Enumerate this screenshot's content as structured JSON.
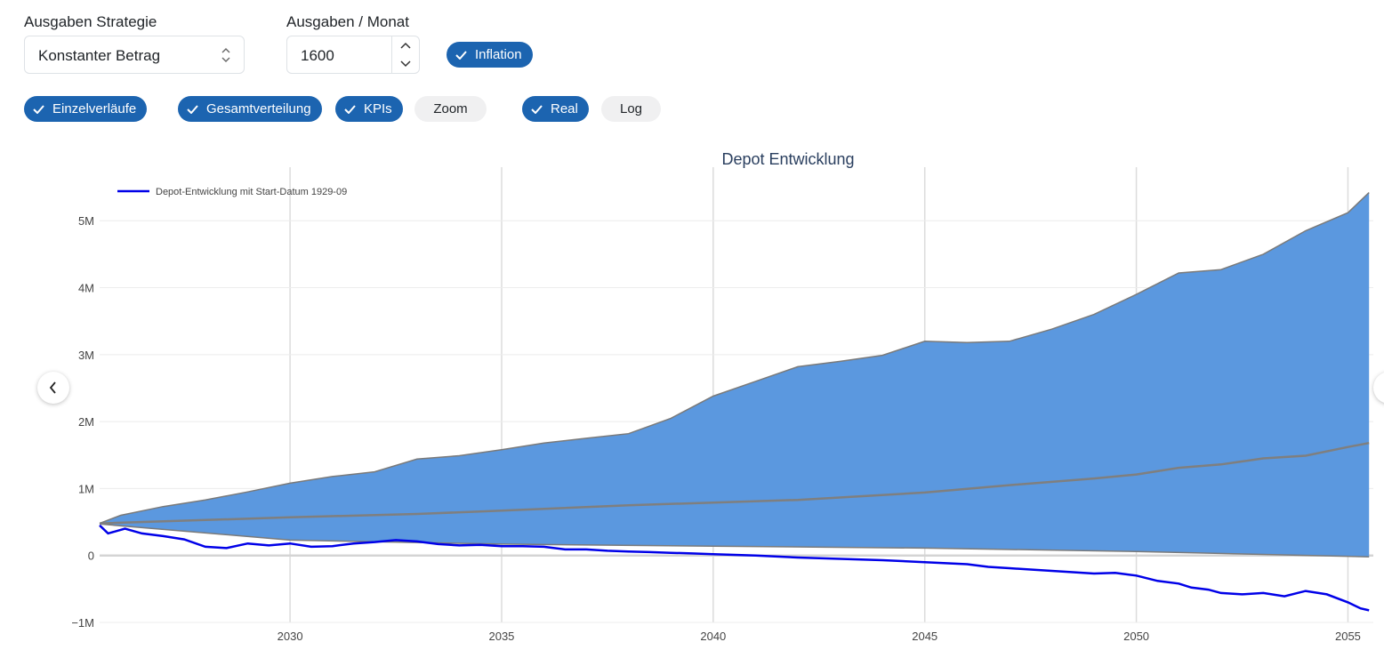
{
  "controls": {
    "strategy": {
      "label": "Ausgaben Strategie",
      "value": "Konstanter Betrag"
    },
    "amount": {
      "label": "Ausgaben / Monat",
      "value": "1600"
    },
    "toggles": [
      {
        "label": "Inflation",
        "active": true
      },
      {
        "label": "Einzelverläufe",
        "active": true
      },
      {
        "label": "Gesamtverteilung",
        "active": true
      },
      {
        "label": "KPIs",
        "active": true
      },
      {
        "label": "Zoom",
        "active": false
      },
      {
        "label": "Real",
        "active": true
      },
      {
        "label": "Log",
        "active": false
      }
    ]
  },
  "chart_data": {
    "type": "area",
    "title": "Depot Entwicklung",
    "xlabel": "",
    "ylabel": "",
    "xlim": [
      2025.5,
      2055.6
    ],
    "ylim": [
      -1000000,
      5800000
    ],
    "x_ticks": [
      2030,
      2035,
      2040,
      2045,
      2050,
      2055
    ],
    "x_tick_labels": [
      "2030",
      "2035",
      "2040",
      "2045",
      "2050",
      "2055"
    ],
    "y_ticks": [
      -1000000,
      0,
      1000000,
      2000000,
      3000000,
      4000000,
      5000000
    ],
    "y_tick_labels": [
      "−1M",
      "0",
      "1M",
      "2M",
      "3M",
      "4M",
      "5M"
    ],
    "legend": {
      "position": "top-left",
      "entries": [
        "Depot-Entwicklung mit Start-Datum 1929-09"
      ]
    },
    "band_upper": {
      "x": [
        2025.5,
        2026,
        2027,
        2028,
        2029,
        2030,
        2031,
        2032,
        2033,
        2034,
        2035,
        2036,
        2037,
        2038,
        2039,
        2040,
        2041,
        2042,
        2043,
        2044,
        2045,
        2046,
        2047,
        2048,
        2049,
        2050,
        2051,
        2052,
        2053,
        2054,
        2055,
        2055.5
      ],
      "y": [
        480000,
        600000,
        730000,
        830000,
        950000,
        1080000,
        1180000,
        1250000,
        1440000,
        1490000,
        1580000,
        1680000,
        1750000,
        1820000,
        2050000,
        2380000,
        2600000,
        2820000,
        2900000,
        2990000,
        3200000,
        3180000,
        3200000,
        3380000,
        3600000,
        3900000,
        4220000,
        4270000,
        4500000,
        4850000,
        5120000,
        5420000
      ]
    },
    "band_lower": {
      "x": [
        2025.5,
        2030,
        2035,
        2040,
        2045,
        2050,
        2055.5
      ],
      "y": [
        470000,
        230000,
        170000,
        140000,
        110000,
        60000,
        -20000
      ]
    },
    "median": {
      "x": [
        2025.5,
        2028,
        2030,
        2033,
        2035,
        2038,
        2040,
        2042,
        2045,
        2047,
        2049,
        2050,
        2051,
        2052,
        2053,
        2054,
        2055,
        2055.5
      ],
      "y": [
        480000,
        530000,
        570000,
        620000,
        670000,
        750000,
        790000,
        830000,
        940000,
        1050000,
        1150000,
        1210000,
        1310000,
        1360000,
        1450000,
        1490000,
        1620000,
        1680000
      ]
    },
    "series": [
      {
        "name": "Depot-Entwicklung mit Start-Datum 1929-09",
        "x": [
          2025.5,
          2025.7,
          2026.1,
          2026.5,
          2027,
          2027.5,
          2028,
          2028.5,
          2029,
          2029.5,
          2030,
          2030.5,
          2031,
          2031.5,
          2032,
          2032.5,
          2033,
          2033.5,
          2034,
          2034.5,
          2035,
          2035.5,
          2036,
          2036.5,
          2037,
          2037.5,
          2038,
          2038.5,
          2039,
          2039.5,
          2040,
          2040.5,
          2041,
          2042,
          2043,
          2044,
          2045,
          2046,
          2046.5,
          2047,
          2047.5,
          2048,
          2048.5,
          2049,
          2049.5,
          2050,
          2050.5,
          2051,
          2051.3,
          2051.7,
          2052,
          2052.5,
          2053,
          2053.5,
          2054,
          2054.5,
          2055,
          2055.3,
          2055.5
        ],
        "y": [
          450000,
          330000,
          400000,
          330000,
          290000,
          240000,
          130000,
          110000,
          180000,
          150000,
          180000,
          130000,
          140000,
          180000,
          200000,
          230000,
          210000,
          170000,
          150000,
          160000,
          140000,
          140000,
          130000,
          90000,
          90000,
          70000,
          60000,
          50000,
          40000,
          30000,
          20000,
          10000,
          0,
          -30000,
          -50000,
          -70000,
          -100000,
          -130000,
          -170000,
          -190000,
          -210000,
          -230000,
          -250000,
          -270000,
          -260000,
          -300000,
          -380000,
          -420000,
          -480000,
          -510000,
          -560000,
          -580000,
          -560000,
          -610000,
          -530000,
          -580000,
          -700000,
          -790000,
          -820000
        ],
        "color": "#0000e8"
      }
    ]
  },
  "colors": {
    "accent": "#1c64b0",
    "band_fill": "#5b98df",
    "band_edge": "#7a7a7a",
    "median": "#7f7f7f",
    "series": "#0000e8",
    "grid": "#e5e5e5",
    "title": "#2a3f5f"
  }
}
